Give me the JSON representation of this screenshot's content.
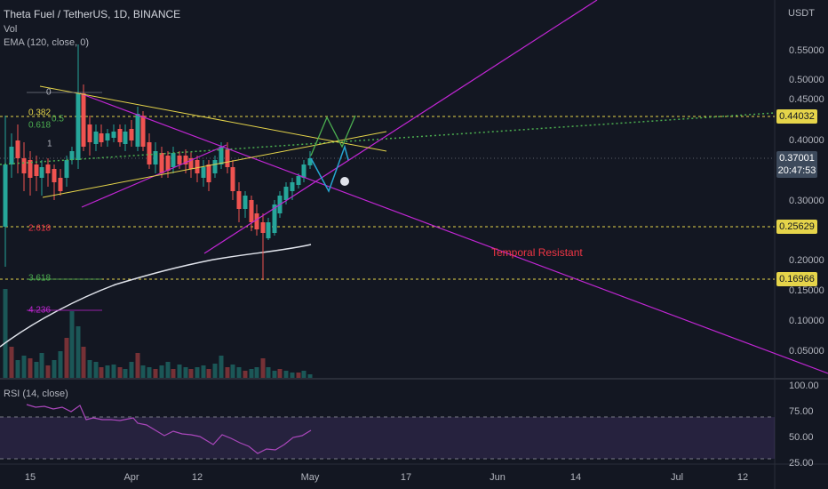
{
  "header": {
    "symbol": "Theta Fuel / TetherUS, 1D, BINANCE",
    "volume": "Vol",
    "ema": "EMA (120, close, 0)",
    "rsi": "RSI (14, close)",
    "currency": "USDT"
  },
  "price_axis": [
    "0.55000",
    "0.50000",
    "0.45000",
    "0.40000",
    "0.30000",
    "0.20000",
    "0.15000",
    "0.10000",
    "0.05000"
  ],
  "price_tags": [
    {
      "label": "0.44032"
    },
    {
      "label": "0.37001",
      "countdown": "20:47:53"
    },
    {
      "label": "0.25629"
    },
    {
      "label": "0.16966"
    }
  ],
  "fib_labels": [
    "0",
    "0.382",
    "0.5",
    "0.618",
    "1",
    "2.618",
    "3.618",
    "4.236"
  ],
  "annotation": "Temporal Resistant",
  "rsi_axis": [
    "100.00",
    "75.00",
    "50.00",
    "25.00"
  ],
  "time_axis": [
    "15",
    "Apr",
    "12",
    "May",
    "17",
    "Jun",
    "14",
    "Jul",
    "12"
  ]
}
